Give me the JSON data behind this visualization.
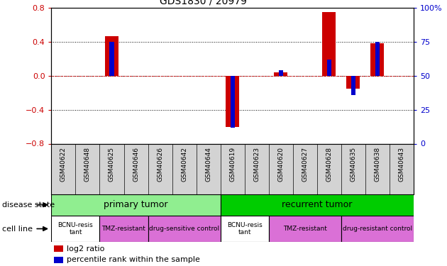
{
  "title": "GDS1830 / 20979",
  "samples": [
    "GSM40622",
    "GSM40648",
    "GSM40625",
    "GSM40646",
    "GSM40626",
    "GSM40642",
    "GSM40644",
    "GSM40619",
    "GSM40623",
    "GSM40620",
    "GSM40627",
    "GSM40628",
    "GSM40635",
    "GSM40638",
    "GSM40643"
  ],
  "log2_ratio": [
    0,
    0,
    0.47,
    0,
    0,
    0,
    0,
    -0.6,
    0,
    0.04,
    0,
    0.75,
    -0.15,
    0.38,
    0
  ],
  "percentile": [
    50,
    50,
    75,
    50,
    50,
    50,
    50,
    12,
    50,
    54,
    50,
    62,
    36,
    75,
    50
  ],
  "ylim_left": [
    -0.8,
    0.8
  ],
  "ylim_right": [
    0,
    100
  ],
  "yticks_left": [
    -0.8,
    -0.4,
    0,
    0.4,
    0.8
  ],
  "yticks_right": [
    0,
    25,
    50,
    75,
    100
  ],
  "bar_color_log2": "#cc0000",
  "bar_color_pct": "#0000cc",
  "background_color": "#ffffff",
  "tick_color_left": "#cc0000",
  "tick_color_right": "#0000cc",
  "label_bg": "#d3d3d3",
  "disease_primary_color": "#90ee90",
  "disease_recurrent_color": "#00cc00",
  "cell_groups": [
    {
      "label": "BCNU-resis\ntant",
      "xstart": -0.5,
      "xend": 1.5,
      "color": "#ffffff"
    },
    {
      "label": "TMZ-resistant",
      "xstart": 1.5,
      "xend": 3.5,
      "color": "#da70d6"
    },
    {
      "label": "drug-sensitive control",
      "xstart": 3.5,
      "xend": 6.5,
      "color": "#da70d6"
    },
    {
      "label": "BCNU-resis\ntant",
      "xstart": 6.5,
      "xend": 8.5,
      "color": "#ffffff"
    },
    {
      "label": "TMZ-resistant",
      "xstart": 8.5,
      "xend": 11.5,
      "color": "#da70d6"
    },
    {
      "label": "drug-resistant control",
      "xstart": 11.5,
      "xend": 14.5,
      "color": "#da70d6"
    }
  ]
}
